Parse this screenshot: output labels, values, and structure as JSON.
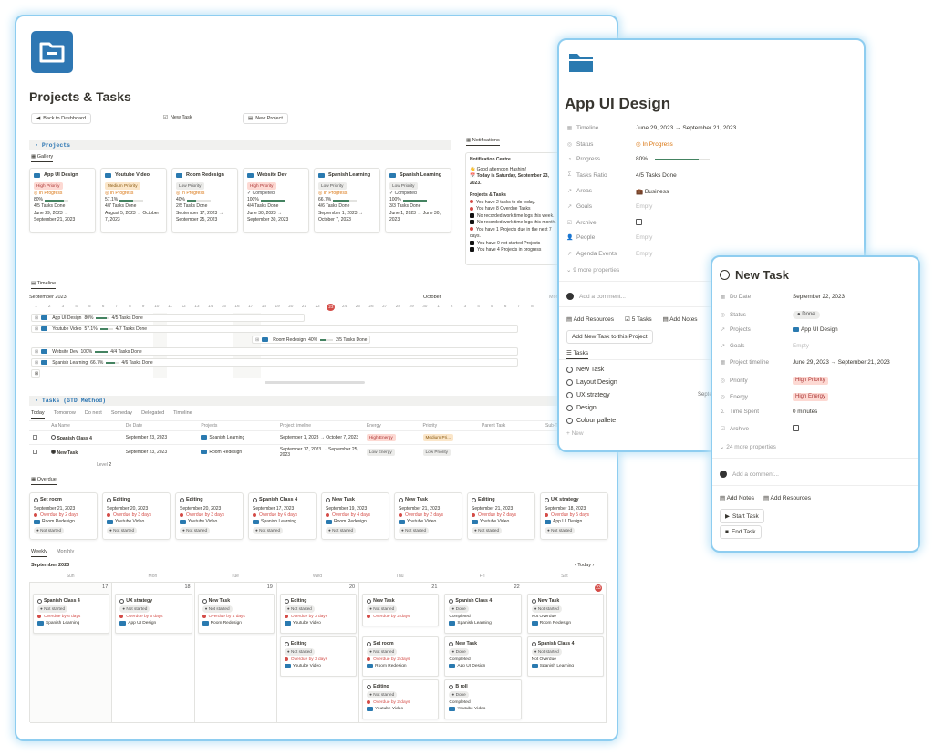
{
  "main": {
    "title": "Projects & Tasks",
    "buttons": {
      "back": "Back to Dashboard",
      "new_task": "New Task",
      "new_project": "New Project"
    },
    "projects_section": "Projects",
    "gallery_tab": "Gallery",
    "notifications_tab": "Notifications",
    "projects": [
      {
        "name": "App UI Design",
        "priority": "High Priority",
        "status": "In Progress",
        "pct": "80%",
        "progress": 0.8,
        "tasks": "4/5 Tasks Done",
        "dates": "June 29, 2023 → September 21, 2023"
      },
      {
        "name": "Youtube Video",
        "priority": "Medium Priority",
        "status": "In Progress",
        "pct": "57.1%",
        "progress": 0.571,
        "tasks": "4/7 Tasks Done",
        "dates": "August 5, 2023 → October 7, 2023"
      },
      {
        "name": "Room Redesign",
        "priority": "Low Priority",
        "status": "In Progress",
        "pct": "40%",
        "progress": 0.4,
        "tasks": "2/5 Tasks Done",
        "dates": "September 17, 2023 → September 25, 2023"
      },
      {
        "name": "Website Dev",
        "priority": "High Priority",
        "status": "Completed",
        "pct": "100%",
        "progress": 1,
        "tasks": "4/4 Tasks Done",
        "dates": "June 30, 2023 → September 30, 2023"
      },
      {
        "name": "Spanish Learning",
        "priority": "Low Priority",
        "status": "In Progress",
        "pct": "66.7%",
        "progress": 0.667,
        "tasks": "4/6 Tasks Done",
        "dates": "September 1, 2023 → October 7, 2023"
      },
      {
        "name": "Spanish Learning",
        "priority": "Low Priority",
        "status": "Completed",
        "pct": "100%",
        "progress": 1,
        "tasks": "3/3 Tasks Done",
        "dates": "June 1, 2023 → June 30, 2023"
      }
    ],
    "notif": {
      "title": "Notification Centre",
      "greet": "👋 Good afternoon Hashim!",
      "today": "📅 Today is Saturday, September 23, 2023.",
      "sub": "Projects & Tasks",
      "items": [
        {
          "t": "You have 2 tasks to do today.",
          "red": true
        },
        {
          "t": "You have 8 Overdue Tasks",
          "red": true
        },
        {
          "t": "No recorded work time logs this week.",
          "red": false
        },
        {
          "t": "No recorded work time logs this month.",
          "red": false
        },
        {
          "t": "You have 1 Projects due in the next 7 days.",
          "red": true
        },
        {
          "t": "You have 0 not started Projects",
          "red": false
        },
        {
          "t": "You have 4 Projects in progress",
          "red": false
        }
      ]
    },
    "timeline": {
      "tab": "Timeline",
      "month": "September 2023",
      "month2": "October",
      "more": "Mon",
      "days": [
        "1",
        "2",
        "3",
        "4",
        "5",
        "6",
        "7",
        "8",
        "9",
        "10",
        "11",
        "12",
        "13",
        "14",
        "15",
        "16",
        "17",
        "18",
        "19",
        "20",
        "21",
        "22",
        "23",
        "24",
        "25",
        "26",
        "27",
        "28",
        "29",
        "30",
        "1",
        "2",
        "3",
        "4",
        "5",
        "6",
        "7",
        "8"
      ],
      "rows": [
        {
          "name": "App UI Design",
          "pct": "80%",
          "tasks": "4/5 Tasks Done"
        },
        {
          "name": "Youtube Video",
          "pct": "57.1%",
          "tasks": "4/7 Tasks Done"
        },
        {
          "name": "Room Redesign",
          "pct": "40%",
          "tasks": "2/5 Tasks Done"
        },
        {
          "name": "Website Dev",
          "pct": "100%",
          "tasks": "4/4 Tasks Done"
        },
        {
          "name": "Spanish Learning",
          "pct": "66.7%",
          "tasks": "4/6 Tasks Done"
        }
      ]
    },
    "tasks_section": "Tasks (GTD Method)",
    "task_tabs": [
      "Today",
      "Tomorrow",
      "Do next",
      "Someday",
      "Delegated",
      "Timeline"
    ],
    "task_cols": [
      "Aa Name",
      "Do Date",
      "Projects",
      "Project timeline",
      "Energy",
      "Priority",
      "Parent Task",
      "Sub-Task"
    ],
    "task_rows": [
      {
        "name": "Spanish Class 4",
        "date": "September 23, 2023",
        "project": "Spanish Learning",
        "timeline": "September 1, 2023 → October 7, 2023",
        "energy": "High Energy",
        "priority": "Medium Pri..."
      },
      {
        "name": "New Task",
        "date": "September 23, 2023",
        "project": "Room Redesign",
        "timeline": "September 17, 2023 → September 25, 2023",
        "energy": "Low Energy",
        "priority": "Low Priority"
      }
    ],
    "level": "Level",
    "level_val": "2",
    "overdue_tab": "Overdue",
    "overdue": [
      {
        "name": "Set room",
        "date": "September 21, 2023",
        "od": "Overdue by 2 days",
        "project": "Room Redesign",
        "status": "Not started"
      },
      {
        "name": "Editing",
        "date": "September 20, 2023",
        "od": "Overdue by 3 days",
        "project": "Youtube Video",
        "status": "Not started"
      },
      {
        "name": "Editing",
        "date": "September 20, 2023",
        "od": "Overdue by 3 days",
        "project": "Youtube Video",
        "status": "Not started"
      },
      {
        "name": "Spanish Class 4",
        "date": "September 17, 2023",
        "od": "Overdue by 6 days",
        "project": "Spanish Learning",
        "status": "Not started"
      },
      {
        "name": "New Task",
        "date": "September 19, 2023",
        "od": "Overdue by 4 days",
        "project": "Room Redesign",
        "status": "Not started"
      },
      {
        "name": "New Task",
        "date": "September 21, 2023",
        "od": "Overdue by 2 days",
        "project": "Youtube Video",
        "status": "Not started"
      },
      {
        "name": "Editing",
        "date": "September 21, 2023",
        "od": "Overdue by 2 days",
        "project": "Youtube Video",
        "status": "Not started"
      },
      {
        "name": "UX strategy",
        "date": "September 18, 2023",
        "od": "Overdue by 5 days",
        "project": "App UI Design",
        "status": "Not started"
      }
    ],
    "cal_tabs": [
      "Weekly",
      "Monthly"
    ],
    "cal_month": "September 2023",
    "cal_today": "Today",
    "cal_days": [
      "Sun",
      "Mon",
      "Tue",
      "Wed",
      "Thu",
      "Fri",
      "Sat"
    ],
    "cal_nums": [
      "17",
      "18",
      "19",
      "20",
      "21",
      "22",
      "23"
    ],
    "cal_cards": [
      {
        "col": 0,
        "row": 0,
        "name": "Spanish Class 4",
        "status": "Not started",
        "line": "Overdue by 6 days",
        "red": true,
        "project": "Spanish Learning"
      },
      {
        "col": 1,
        "row": 0,
        "name": "UX strategy",
        "status": "Not started",
        "line": "Overdue by 5 days",
        "red": true,
        "project": "App UI Design"
      },
      {
        "col": 2,
        "row": 0,
        "name": "New Task",
        "status": "Not started",
        "line": "Overdue by 4 days",
        "red": true,
        "project": "Room Redesign"
      },
      {
        "col": 3,
        "row": 0,
        "name": "Editing",
        "status": "Not started",
        "line": "Overdue by 3 days",
        "red": true,
        "project": "Youtube Video"
      },
      {
        "col": 4,
        "row": 0,
        "name": "New Task",
        "status": "Not started",
        "line": "Overdue by 2 days",
        "red": true,
        "project": ""
      },
      {
        "col": 5,
        "row": 0,
        "name": "Spanish Class 4",
        "status": "Done",
        "line": "Completed",
        "red": false,
        "project": "Spanish Learning"
      },
      {
        "col": 6,
        "row": 0,
        "name": "New Task",
        "status": "Not started",
        "line": "Not Overdue",
        "red": false,
        "project": "Room Redesign"
      },
      {
        "col": 3,
        "row": 1,
        "name": "Editing",
        "status": "Not started",
        "line": "Overdue by 3 days",
        "red": true,
        "project": "Youtube Video"
      },
      {
        "col": 4,
        "row": 1,
        "name": "Set room",
        "status": "Not started",
        "line": "Overdue by 2 days",
        "red": true,
        "project": "Room Redesign"
      },
      {
        "col": 5,
        "row": 1,
        "name": "New Task",
        "status": "Done",
        "line": "Completed",
        "red": false,
        "project": "App UI Design"
      },
      {
        "col": 6,
        "row": 1,
        "name": "Spanish Class 4",
        "status": "Not started",
        "line": "Not Overdue",
        "red": false,
        "project": "Spanish Learning"
      },
      {
        "col": 4,
        "row": 2,
        "name": "Editing",
        "status": "Not started",
        "line": "Overdue by 2 days",
        "red": true,
        "project": "Youtube Video"
      },
      {
        "col": 5,
        "row": 2,
        "name": "B roll",
        "status": "Done",
        "line": "Completed",
        "red": false,
        "project": "Youtube Video"
      }
    ]
  },
  "app": {
    "title": "App UI Design",
    "props": [
      {
        "k": "Timeline",
        "icon": "▦",
        "v": "June 29, 2023 → September 21, 2023",
        "type": "text"
      },
      {
        "k": "Status",
        "icon": "◎",
        "v": "In Progress",
        "type": "status"
      },
      {
        "k": "Progress",
        "icon": "◔",
        "v": "80%",
        "type": "progress"
      },
      {
        "k": "Tasks Ratio",
        "icon": "Σ",
        "v": "4/5 Tasks Done",
        "type": "text"
      },
      {
        "k": "Areas",
        "icon": "↗",
        "v": "Business",
        "type": "area"
      },
      {
        "k": "Goals",
        "icon": "↗",
        "v": "Empty",
        "type": "empty"
      },
      {
        "k": "Archive",
        "icon": "☑",
        "v": "",
        "type": "check"
      },
      {
        "k": "People",
        "icon": "👤",
        "v": "Empty",
        "type": "empty"
      },
      {
        "k": "Agenda Events",
        "icon": "↗",
        "v": "Empty",
        "type": "empty"
      }
    ],
    "progress_value": 0.8,
    "more": "9 more properties",
    "comment": "Add a comment...",
    "actions": [
      "Add Resources",
      "5 Tasks",
      "Add Notes"
    ],
    "add_task": "Add New Task to this Project",
    "tasks_tab": "Tasks",
    "tasks": [
      "New Task",
      "Layout Design",
      "UX strategy",
      "Design",
      "Colour pallete"
    ],
    "new": "+ New",
    "peek": "Septe"
  },
  "task": {
    "title": "New Task",
    "props": [
      {
        "k": "Do Date",
        "icon": "▦",
        "v": "September 22, 2023",
        "type": "text"
      },
      {
        "k": "Status",
        "icon": "◎",
        "v": "Done",
        "type": "done"
      },
      {
        "k": "Projects",
        "icon": "↗",
        "v": "App UI Design",
        "type": "project"
      },
      {
        "k": "Goals",
        "icon": "↗",
        "v": "Empty",
        "type": "empty"
      },
      {
        "k": "Project timeline",
        "icon": "▦",
        "v": "June 29, 2023 → September 21, 2023",
        "type": "text"
      },
      {
        "k": "Priority",
        "icon": "◎",
        "v": "High Priority",
        "type": "high"
      },
      {
        "k": "Energy",
        "icon": "◎",
        "v": "High Energy",
        "type": "high"
      },
      {
        "k": "Time Spent",
        "icon": "Σ",
        "v": "0 minutes",
        "type": "text"
      },
      {
        "k": "Archive",
        "icon": "☑",
        "v": "",
        "type": "check"
      }
    ],
    "more": "24 more properties",
    "comment": "Add a comment...",
    "actions": [
      "Add Notes",
      "Add Resources"
    ],
    "start": "Start Task",
    "end": "End Task"
  },
  "colors": {
    "accent": "#2e77b3",
    "red": "#d44c47",
    "green": "#448361",
    "border": "#8ecdf0"
  }
}
